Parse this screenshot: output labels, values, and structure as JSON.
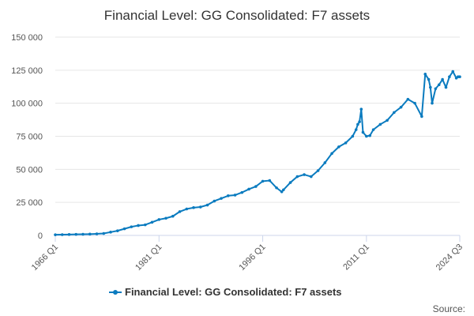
{
  "chart_data": {
    "type": "line",
    "title": "Financial Level: GG Consolidated: F7 assets",
    "xlabel": "",
    "ylabel": "",
    "ylim": [
      0,
      150000
    ],
    "yticks": [
      0,
      25000,
      50000,
      75000,
      100000,
      125000,
      150000
    ],
    "ytick_labels": [
      "0",
      "25 000",
      "50 000",
      "75 000",
      "100 000",
      "125 000",
      "150 000"
    ],
    "xlim": [
      1966.0,
      2024.5
    ],
    "xticks": [
      1966.0,
      1981.0,
      1996.0,
      2011.0,
      2024.5
    ],
    "xtick_labels": [
      "1966 Q1",
      "1981 Q1",
      "1996 Q1",
      "2011 Q1",
      "2024 Q3"
    ],
    "grid": "horizontal",
    "legend": "bottom-center",
    "series": [
      {
        "name": "Financial Level: GG Consolidated: F7 assets",
        "color": "#0a7bbf",
        "x": [
          1966.0,
          1967.0,
          1968.0,
          1969.0,
          1970.0,
          1971.0,
          1972.0,
          1973.0,
          1974.0,
          1975.0,
          1976.0,
          1977.0,
          1978.0,
          1979.0,
          1980.0,
          1981.0,
          1982.0,
          1983.0,
          1984.0,
          1985.0,
          1986.0,
          1987.0,
          1988.0,
          1989.0,
          1990.0,
          1991.0,
          1992.0,
          1993.0,
          1994.0,
          1995.0,
          1996.0,
          1997.0,
          1998.0,
          1998.75,
          1999.0,
          2000.0,
          2001.0,
          2002.0,
          2003.0,
          2004.0,
          2005.0,
          2006.0,
          2007.0,
          2008.0,
          2009.0,
          2009.5,
          2009.75,
          2010.0,
          2010.25,
          2010.5,
          2011.0,
          2011.5,
          2012.0,
          2013.0,
          2014.0,
          2015.0,
          2016.0,
          2017.0,
          2018.0,
          2019.0,
          2019.5,
          2020.0,
          2020.25,
          2020.5,
          2021.0,
          2021.5,
          2022.0,
          2022.5,
          2023.0,
          2023.5,
          2024.0,
          2024.25,
          2024.5
        ],
        "values": [
          500,
          600,
          700,
          800,
          900,
          1000,
          1200,
          1500,
          2500,
          3500,
          5000,
          6500,
          7500,
          8000,
          10000,
          12000,
          13000,
          14500,
          18000,
          20000,
          21000,
          21500,
          23000,
          26000,
          28000,
          30000,
          30500,
          32500,
          35000,
          37000,
          41000,
          41500,
          36000,
          33000,
          34500,
          40000,
          44500,
          46000,
          44500,
          49000,
          55000,
          62000,
          67000,
          70000,
          75000,
          80000,
          84000,
          86000,
          95500,
          78000,
          75000,
          75500,
          80000,
          84000,
          87000,
          93000,
          97000,
          103000,
          100000,
          90000,
          122000,
          118000,
          112000,
          100000,
          111000,
          114000,
          118000,
          112000,
          120000,
          124000,
          119000,
          120000,
          120000
        ]
      }
    ],
    "credits": "Source:"
  }
}
